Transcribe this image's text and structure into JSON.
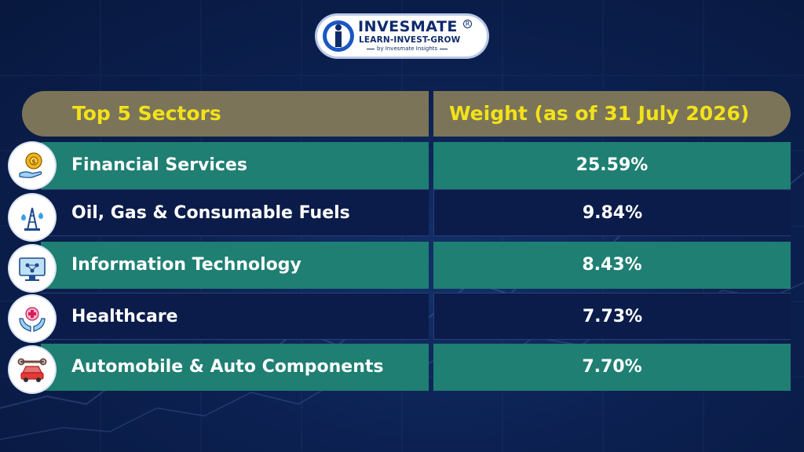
{
  "logo": {
    "brand": "INVESMATE",
    "registered": "R",
    "tagline": "LEARN-INVEST-GROW",
    "sub": "by Invesmate Insights"
  },
  "table": {
    "header_sector": "Top 5 Sectors",
    "header_weight": "Weight (as of 31 July 2026)",
    "rows": [
      {
        "sector": "Financial Services",
        "weight": "25.59%",
        "icon": "money-gear-hand-icon"
      },
      {
        "sector": "Oil, Gas & Consumable Fuels",
        "weight": "9.84%",
        "icon": "oil-rig-icon"
      },
      {
        "sector": "Information Technology",
        "weight": "8.43%",
        "icon": "computer-network-icon"
      },
      {
        "sector": "Healthcare",
        "weight": "7.73%",
        "icon": "medical-cross-hands-icon"
      },
      {
        "sector": "Automobile & Auto Components",
        "weight": "7.70%",
        "icon": "car-wrench-icon"
      }
    ]
  },
  "colors": {
    "background": "#0c2152",
    "header": "#7b7458",
    "header_text": "#f2e21a",
    "teal_row": "#1e7f72",
    "navy_row": "#0b1c4a",
    "text": "#ffffff"
  }
}
